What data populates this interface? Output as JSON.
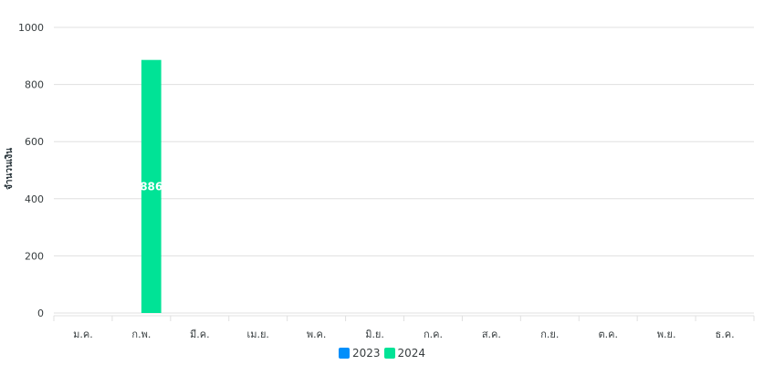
{
  "chart_data": {
    "type": "bar",
    "ylabel": "จำนวนเงิน",
    "xlabel": "",
    "categories": [
      "ม.ค.",
      "ก.พ.",
      "มี.ค.",
      "เม.ย.",
      "พ.ค.",
      "มิ.ย.",
      "ก.ค.",
      "ส.ค.",
      "ก.ย.",
      "ต.ค.",
      "พ.ย.",
      "ธ.ค."
    ],
    "series": [
      {
        "name": "2023",
        "color": "#008ffb",
        "values": [
          0,
          0,
          0,
          0,
          0,
          0,
          0,
          0,
          0,
          0,
          0,
          0
        ]
      },
      {
        "name": "2024",
        "color": "#00e396",
        "values": [
          0,
          886,
          0,
          0,
          0,
          0,
          0,
          0,
          0,
          0,
          0,
          0
        ]
      }
    ],
    "ylim": [
      0,
      1000
    ],
    "yticks": [
      0,
      200,
      400,
      600,
      800,
      1000
    ],
    "data_labels": [
      {
        "category": "ก.พ.",
        "series": "2024",
        "text": "886"
      }
    ],
    "grid": true,
    "legend_position": "bottom"
  }
}
